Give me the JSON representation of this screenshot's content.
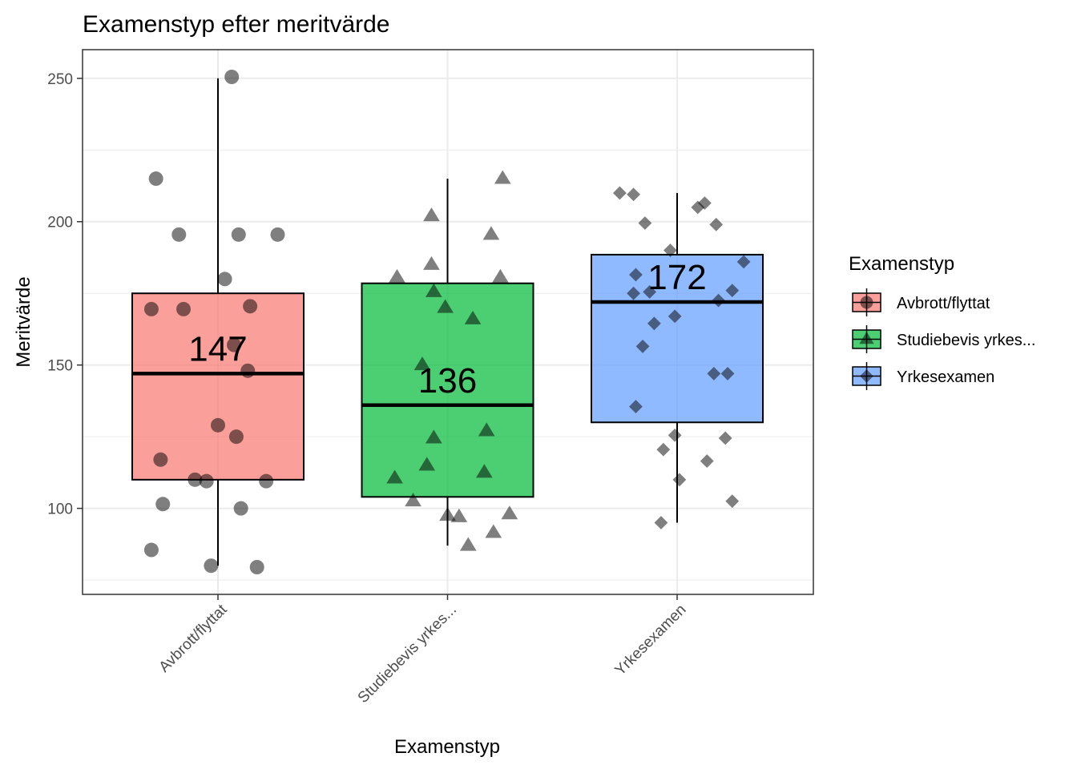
{
  "chart_data": {
    "type": "boxplot",
    "title": "Examenstyp efter meritvärde",
    "xlabel": "Examenstyp",
    "ylabel": "Meritvärde",
    "ylim": [
      70,
      260
    ],
    "yticks": [
      100,
      150,
      200,
      250
    ],
    "grid": true,
    "legend": {
      "title": "Examenstyp",
      "placement": "right",
      "entries": [
        "Avbrott/flyttat",
        "Studiebevis yrkes...",
        "Yrkesexamen"
      ]
    },
    "categories": [
      "Avbrott/flyttat",
      "Studiebevis yrkes...",
      "Yrkesexamen"
    ],
    "colors": [
      "#F8766D",
      "#00BA38",
      "#619CFF"
    ],
    "series": [
      {
        "name": "Avbrott/flyttat",
        "shape": "circle",
        "box": {
          "whisker_low": 80,
          "q1": 110,
          "median": 147,
          "q3": 175,
          "whisker_high": 250
        },
        "median_label": "147",
        "points": [
          [
            -0.27,
            215
          ],
          [
            -0.17,
            195.5
          ],
          [
            0.09,
            195.5
          ],
          [
            0.26,
            195.5
          ],
          [
            0.03,
            180
          ],
          [
            -0.29,
            169.5
          ],
          [
            -0.15,
            169.5
          ],
          [
            0.14,
            170.5
          ],
          [
            0.07,
            157
          ],
          [
            0.13,
            148
          ],
          [
            0.0,
            129
          ],
          [
            0.08,
            125
          ],
          [
            -0.25,
            117
          ],
          [
            -0.1,
            110
          ],
          [
            -0.05,
            109.5
          ],
          [
            0.21,
            109.5
          ],
          [
            -0.24,
            101.5
          ],
          [
            0.1,
            100
          ],
          [
            -0.29,
            85.5
          ],
          [
            -0.03,
            80
          ],
          [
            0.17,
            79.5
          ],
          [
            0.06,
            250.5
          ]
        ]
      },
      {
        "name": "Studiebevis yrkes...",
        "shape": "triangle",
        "box": {
          "whisker_low": 87,
          "q1": 104,
          "median": 136,
          "q3": 178.5,
          "whisker_high": 215
        },
        "median_label": "136",
        "points": [
          [
            0.24,
            215
          ],
          [
            -0.07,
            202
          ],
          [
            0.19,
            195.5
          ],
          [
            -0.07,
            185
          ],
          [
            -0.22,
            180.5
          ],
          [
            0.23,
            180.5
          ],
          [
            -0.06,
            175.5
          ],
          [
            -0.01,
            170
          ],
          [
            0.11,
            166
          ],
          [
            -0.11,
            150
          ],
          [
            -0.06,
            124.5
          ],
          [
            0.17,
            127
          ],
          [
            -0.09,
            115
          ],
          [
            0.16,
            112.5
          ],
          [
            -0.23,
            110.5
          ],
          [
            -0.15,
            102.5
          ],
          [
            0.05,
            97
          ],
          [
            0.0,
            97.5
          ],
          [
            0.27,
            98
          ],
          [
            0.2,
            91.5
          ],
          [
            0.09,
            87
          ]
        ]
      },
      {
        "name": "Yrkesexamen",
        "shape": "diamond",
        "box": {
          "whisker_low": 95,
          "q1": 130,
          "median": 172,
          "q3": 188.5,
          "whisker_high": 210
        },
        "median_label": "172",
        "points": [
          [
            -0.25,
            210
          ],
          [
            -0.19,
            209.5
          ],
          [
            -0.14,
            199.5
          ],
          [
            0.12,
            206.5
          ],
          [
            0.09,
            205
          ],
          [
            0.17,
            199
          ],
          [
            -0.03,
            190
          ],
          [
            0.29,
            186
          ],
          [
            -0.18,
            181.5
          ],
          [
            -0.19,
            175
          ],
          [
            -0.12,
            175.5
          ],
          [
            0.24,
            176
          ],
          [
            0.18,
            172.5
          ],
          [
            -0.01,
            167
          ],
          [
            -0.1,
            164.5
          ],
          [
            -0.15,
            156.5
          ],
          [
            0.16,
            147
          ],
          [
            0.22,
            147
          ],
          [
            -0.18,
            135.5
          ],
          [
            -0.01,
            125.5
          ],
          [
            -0.06,
            120.5
          ],
          [
            0.21,
            124.5
          ],
          [
            0.13,
            116.5
          ],
          [
            0.01,
            110
          ],
          [
            0.24,
            102.5
          ],
          [
            -0.07,
            95
          ]
        ]
      }
    ]
  }
}
